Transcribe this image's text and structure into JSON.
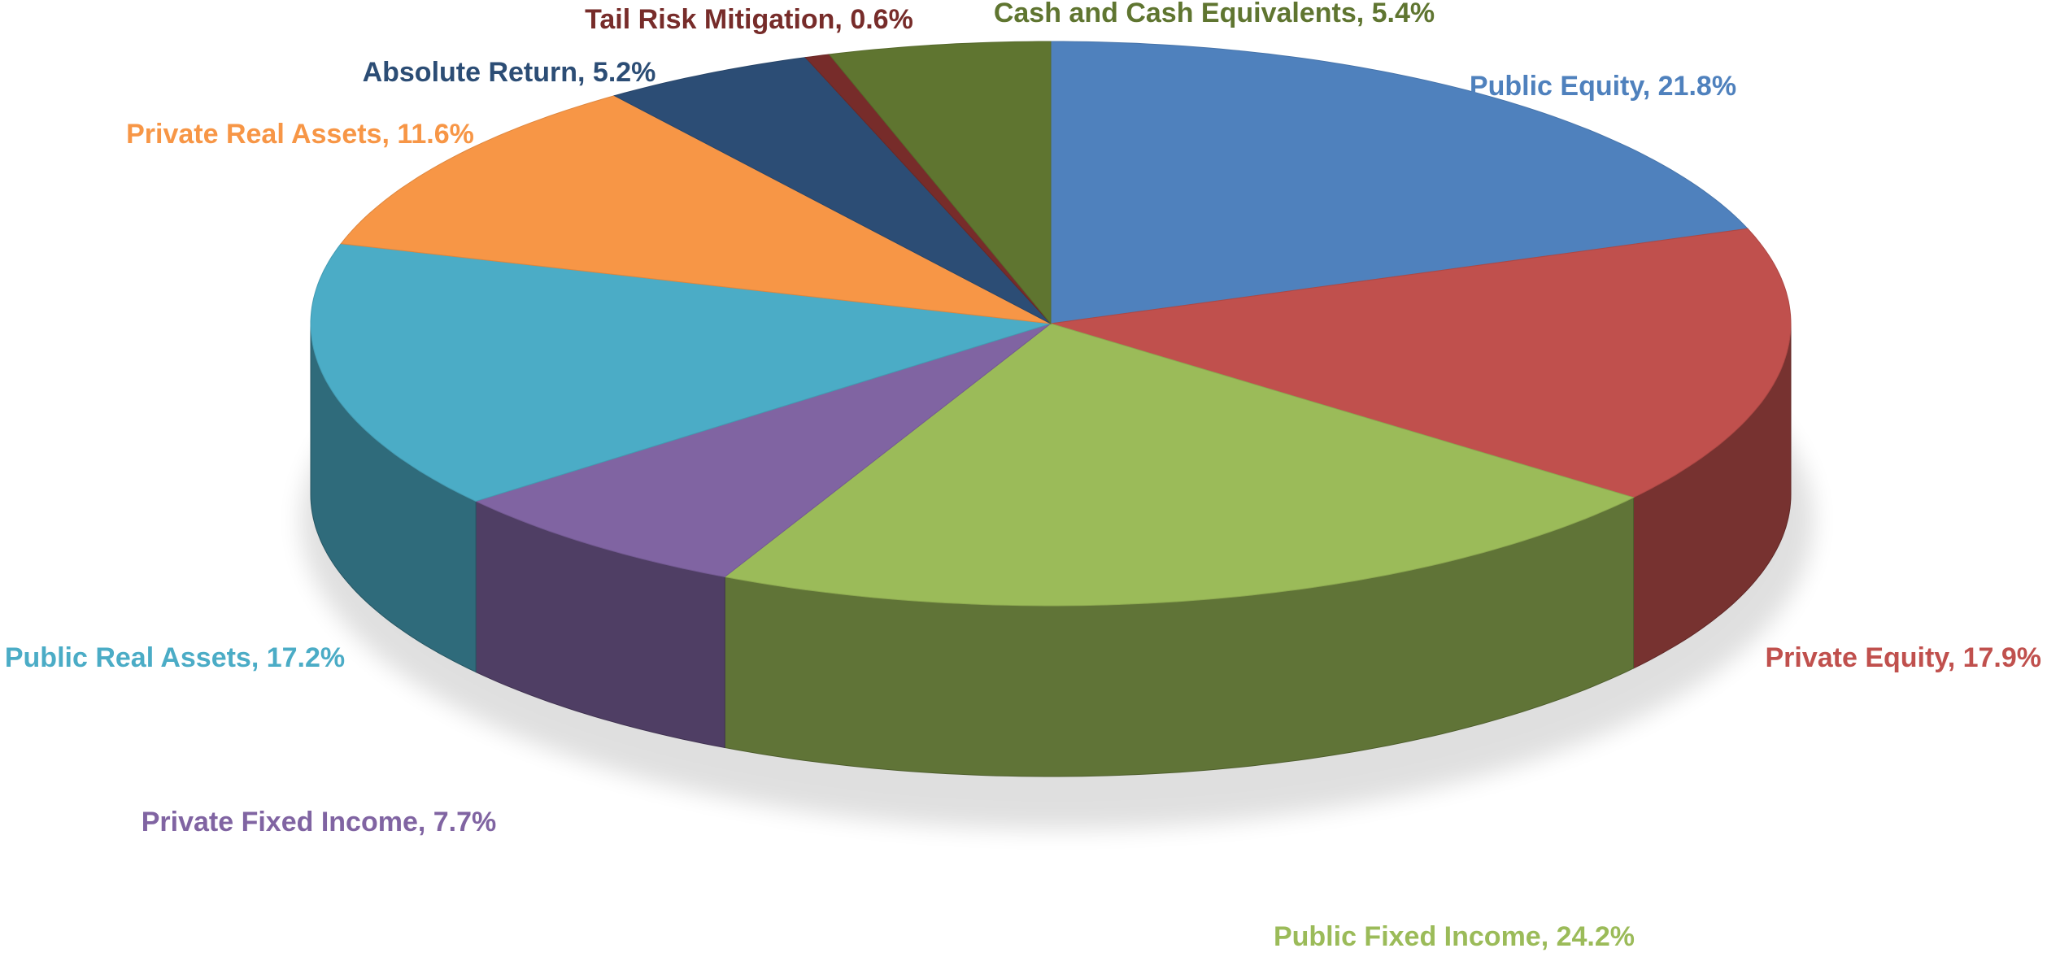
{
  "chart_data": {
    "type": "pie3d",
    "categories": [
      "Public Equity",
      "Private Equity",
      "Public Fixed Income",
      "Private Fixed Income",
      "Public Real Assets",
      "Private Real Assets",
      "Absolute Return",
      "Tail Risk Mitigation",
      "Cash and Cash Equivalents"
    ],
    "values": [
      21.8,
      17.9,
      24.2,
      7.7,
      17.2,
      11.6,
      5.2,
      0.6,
      5.4
    ],
    "value_labels": [
      "Public Equity, 21.8%",
      "Private Equity, 17.9%",
      "Public Fixed Income, 24.2%",
      "Private Fixed Income, 7.7%",
      "Public Real Assets, 17.2%",
      "Private Real Assets, 11.6%",
      "Absolute Return, 5.2%",
      "Tail Risk Mitigation, 0.6%",
      "Cash and Cash Equivalents, 5.4%"
    ],
    "colors": [
      "#4f81bd",
      "#c0504d",
      "#9bbb59",
      "#8064a2",
      "#4bacc6",
      "#f79646",
      "#2c4d75",
      "#772c2a",
      "#5f7530"
    ]
  }
}
